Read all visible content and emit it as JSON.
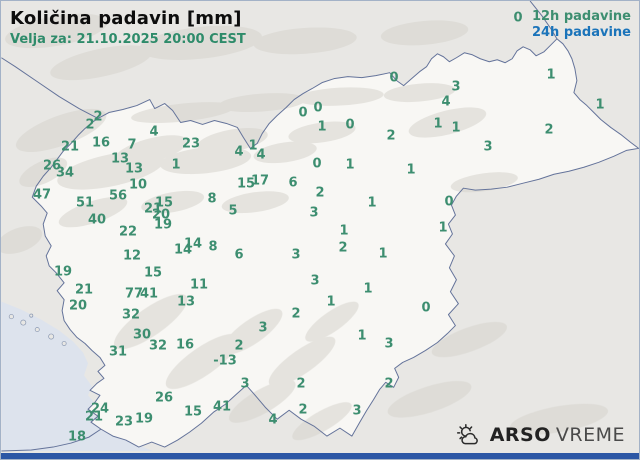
{
  "header": {
    "title": "Količina padavin [mm]",
    "valid_for": "Velja za: 21.10.2025 20:00 CEST"
  },
  "legend": {
    "item_12h": "12h padavine",
    "item_24h": "24h padavine"
  },
  "branding": {
    "brand_bold": "ARSO",
    "brand_light": "VREME"
  },
  "colors": {
    "value_green": "#3d8e70",
    "legend_blue": "#1b74ba",
    "subtitle_green": "#2e8b6a",
    "country_border": "#64739a",
    "sea": "#dde3ed",
    "slovenia_fill": "#f8f7f4",
    "outside_fill": "#e8e7e4",
    "bottom_bar": "#2c57a5"
  },
  "chart_data": {
    "type": "map-values",
    "title": "Količina padavin [mm]",
    "unit": "mm",
    "region": "Slovenia",
    "stations": [
      [
        97,
        116,
        "2"
      ],
      [
        89,
        124,
        "2"
      ],
      [
        153,
        131,
        "4"
      ],
      [
        69,
        146,
        "21"
      ],
      [
        100,
        142,
        "16"
      ],
      [
        131,
        144,
        "7"
      ],
      [
        119,
        158,
        "13"
      ],
      [
        133,
        168,
        "13"
      ],
      [
        51,
        165,
        "26"
      ],
      [
        64,
        172,
        "34"
      ],
      [
        137,
        184,
        "10"
      ],
      [
        117,
        195,
        "56"
      ],
      [
        41,
        194,
        "47"
      ],
      [
        84,
        202,
        "51"
      ],
      [
        96,
        219,
        "40"
      ],
      [
        127,
        231,
        "22"
      ],
      [
        163,
        202,
        "15"
      ],
      [
        152,
        208,
        "21"
      ],
      [
        160,
        214,
        "20"
      ],
      [
        162,
        224,
        "19"
      ],
      [
        190,
        143,
        "23"
      ],
      [
        175,
        164,
        "1"
      ],
      [
        238,
        151,
        "4"
      ],
      [
        252,
        145,
        "1"
      ],
      [
        260,
        154,
        "4"
      ],
      [
        245,
        183,
        "15"
      ],
      [
        259,
        180,
        "17"
      ],
      [
        211,
        198,
        "8"
      ],
      [
        232,
        210,
        "5"
      ],
      [
        313,
        212,
        "3"
      ],
      [
        292,
        182,
        "6"
      ],
      [
        319,
        192,
        "2"
      ],
      [
        316,
        163,
        "0"
      ],
      [
        349,
        164,
        "1"
      ],
      [
        302,
        112,
        "0"
      ],
      [
        317,
        107,
        "0"
      ],
      [
        321,
        126,
        "1"
      ],
      [
        349,
        124,
        "0"
      ],
      [
        390,
        135,
        "2"
      ],
      [
        393,
        77,
        "0"
      ],
      [
        410,
        169,
        "1"
      ],
      [
        455,
        86,
        "3"
      ],
      [
        445,
        101,
        "4"
      ],
      [
        437,
        123,
        "1"
      ],
      [
        455,
        127,
        "1"
      ],
      [
        487,
        146,
        "3"
      ],
      [
        550,
        74,
        "1"
      ],
      [
        599,
        104,
        "1"
      ],
      [
        548,
        129,
        "2"
      ],
      [
        517,
        17,
        "0"
      ],
      [
        371,
        202,
        "1"
      ],
      [
        448,
        201,
        "0"
      ],
      [
        442,
        227,
        "1"
      ],
      [
        343,
        230,
        "1"
      ],
      [
        342,
        247,
        "2"
      ],
      [
        382,
        253,
        "1"
      ],
      [
        367,
        288,
        "1"
      ],
      [
        425,
        307,
        "0"
      ],
      [
        361,
        335,
        "1"
      ],
      [
        388,
        343,
        "3"
      ],
      [
        388,
        383,
        "2"
      ],
      [
        182,
        249,
        "14"
      ],
      [
        192,
        243,
        "14"
      ],
      [
        212,
        246,
        "8"
      ],
      [
        238,
        254,
        "6"
      ],
      [
        295,
        254,
        "3"
      ],
      [
        198,
        284,
        "11"
      ],
      [
        185,
        301,
        "13"
      ],
      [
        131,
        255,
        "12"
      ],
      [
        62,
        271,
        "19"
      ],
      [
        152,
        272,
        "15"
      ],
      [
        83,
        289,
        "21"
      ],
      [
        77,
        305,
        "20"
      ],
      [
        133,
        293,
        "77"
      ],
      [
        148,
        293,
        "41"
      ],
      [
        130,
        314,
        "32"
      ],
      [
        141,
        334,
        "30"
      ],
      [
        117,
        351,
        "31"
      ],
      [
        157,
        345,
        "32"
      ],
      [
        184,
        344,
        "16"
      ],
      [
        238,
        345,
        "2"
      ],
      [
        224,
        360,
        "-13"
      ],
      [
        262,
        327,
        "3"
      ],
      [
        295,
        313,
        "2"
      ],
      [
        330,
        301,
        "1"
      ],
      [
        314,
        280,
        "3"
      ],
      [
        163,
        397,
        "26"
      ],
      [
        99,
        408,
        "24"
      ],
      [
        93,
        416,
        "21"
      ],
      [
        123,
        421,
        "23"
      ],
      [
        143,
        418,
        "19"
      ],
      [
        76,
        436,
        "18"
      ],
      [
        192,
        411,
        "15"
      ],
      [
        221,
        406,
        "41"
      ],
      [
        244,
        383,
        "3"
      ],
      [
        272,
        419,
        "4"
      ],
      [
        300,
        383,
        "2"
      ],
      [
        302,
        409,
        "2"
      ],
      [
        356,
        410,
        "3"
      ]
    ]
  }
}
